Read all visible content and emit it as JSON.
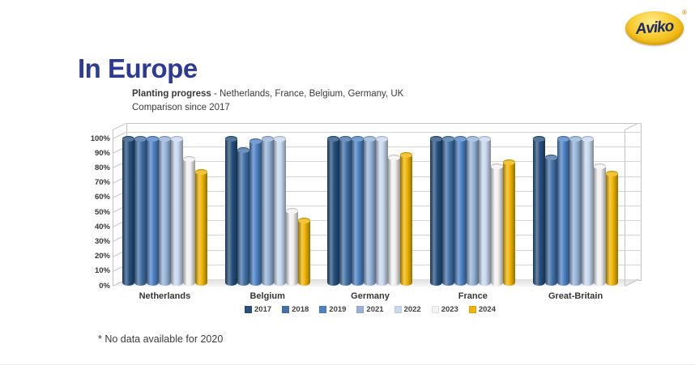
{
  "page": {
    "title": "In Europe"
  },
  "logo": {
    "brand": "Aviko",
    "registered": "®",
    "oval_color": "#EFB711",
    "text_color": "#1E2B63"
  },
  "subtitle": {
    "bold": "Planting progress",
    "rest": " - Netherlands, France, Belgium, Germany, UK",
    "line2": "Comparison since 2017"
  },
  "footnote": {
    "text": "* No data available for 2020"
  },
  "chart_data": {
    "type": "bar",
    "style": "3d-cylinder",
    "title": "",
    "xlabel": "",
    "ylabel": "",
    "categories": [
      "Netherlands",
      "Belgium",
      "Germany",
      "France",
      "Great-Britain"
    ],
    "series": [
      {
        "name": "2017",
        "color": "#27507E",
        "values": [
          100,
          100,
          100,
          100,
          100
        ]
      },
      {
        "name": "2018",
        "color": "#4472A8",
        "values": [
          100,
          92,
          100,
          100,
          87
        ]
      },
      {
        "name": "2019",
        "color": "#4E82C6",
        "values": [
          100,
          98,
          100,
          100,
          100
        ]
      },
      {
        "name": "2021",
        "color": "#95B3D7",
        "values": [
          100,
          100,
          100,
          100,
          100
        ]
      },
      {
        "name": "2022",
        "color": "#C9D9EF",
        "values": [
          100,
          100,
          100,
          100,
          100
        ]
      },
      {
        "name": "2023",
        "color": "#F2F2F2",
        "values": [
          86,
          51,
          87,
          81,
          81
        ]
      },
      {
        "name": "2024",
        "color": "#F0B400",
        "values": [
          77,
          44,
          89,
          84,
          76
        ]
      }
    ],
    "ylim": [
      0,
      100
    ],
    "yticks": [
      "0%",
      "10%",
      "20%",
      "30%",
      "40%",
      "50%",
      "60%",
      "70%",
      "80%",
      "90%",
      "100%"
    ],
    "grid": true,
    "legend_position": "bottom"
  }
}
